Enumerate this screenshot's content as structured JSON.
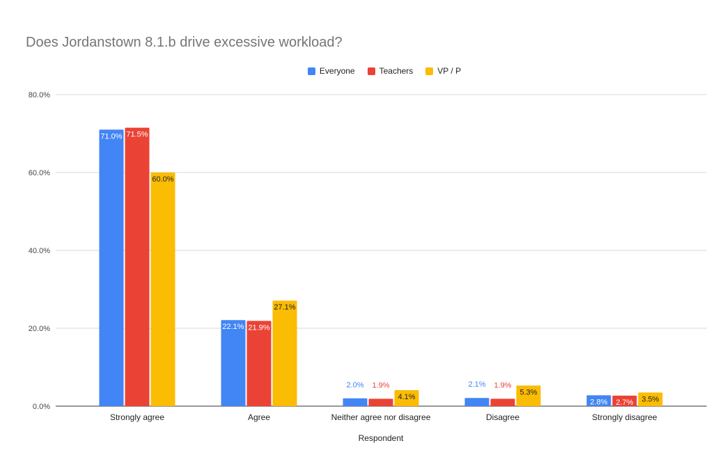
{
  "chart_data": {
    "type": "bar",
    "title": "Does Jordanstown 8.1.b drive excessive workload?",
    "xlabel": "Respondent",
    "ylabel": "",
    "ylim": [
      0,
      80
    ],
    "y_ticks": [
      0,
      20,
      40,
      60,
      80
    ],
    "y_tick_labels": [
      "0.0%",
      "20.0%",
      "40.0%",
      "60.0%",
      "80.0%"
    ],
    "grid": true,
    "legend_position": "top-center",
    "categories": [
      "Strongly agree",
      "Agree",
      "Neither agree nor disagree",
      "Disagree",
      "Strongly disagree"
    ],
    "series": [
      {
        "name": "Everyone",
        "color": "#4285f4",
        "values": [
          71.0,
          22.1,
          2.0,
          2.1,
          2.8
        ],
        "labels": [
          "71.0%",
          "22.1%",
          "2.0%",
          "2.1%",
          "2.8%"
        ]
      },
      {
        "name": "Teachers",
        "color": "#ea4335",
        "values": [
          71.5,
          21.9,
          1.9,
          1.9,
          2.7
        ],
        "labels": [
          "71.5%",
          "21.9%",
          "1.9%",
          "1.9%",
          "2.7%"
        ]
      },
      {
        "name": "VP / P",
        "color": "#fbbc04",
        "values": [
          60.0,
          27.1,
          4.1,
          5.3,
          3.5
        ],
        "labels": [
          "60.0%",
          "27.1%",
          "4.1%",
          "5.3%",
          "3.5%"
        ]
      }
    ]
  }
}
